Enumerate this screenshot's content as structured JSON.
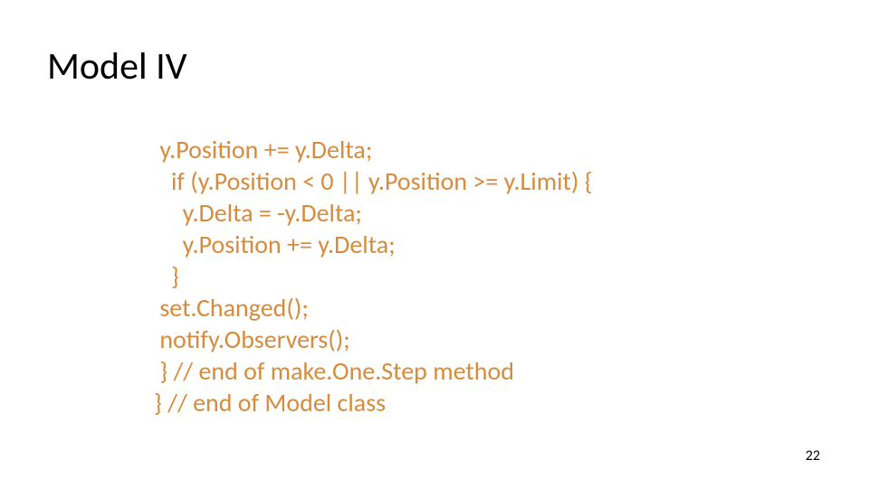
{
  "slide": {
    "title": "Model IV",
    "page_number": "22",
    "title_color": "#000000",
    "title_fontsize": 42,
    "code_color": "#d78b3c",
    "code_fontsize": 28,
    "background_color": "#ffffff",
    "code_lines": {
      "l1": " y.Position += y.Delta;",
      "l2": "   if (y.Position < 0 || y.Position >= y.Limit) {",
      "l3": "     y.Delta = -y.Delta;",
      "l4": "     y.Position += y.Delta;",
      "l5": "   }",
      "l6": " set.Changed();",
      "l7": " notify.Observers();",
      "l8": " } // end of make.One.Step method",
      "l9": "} // end of Model class"
    }
  }
}
